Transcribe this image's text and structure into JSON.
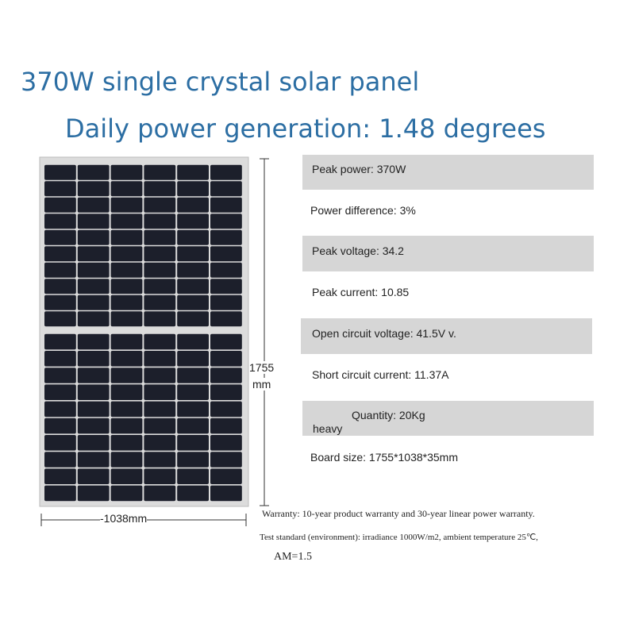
{
  "header": {
    "title": "370W single crystal solar panel",
    "subtitle": "Daily power generation: 1.48 degrees"
  },
  "dimensions": {
    "height_value": "1755",
    "height_unit": "mm",
    "width": "-1038mm"
  },
  "specs": [
    "Peak power: 370W",
    "Power difference: 3%",
    "Peak voltage: 34.2",
    "Peak current: 10.85",
    "Open circuit voltage: 41.5V v.",
    "Short circuit current: 11.37A",
    "Quantity: 20Kg",
    "Board size: 1755*1038*35mm"
  ],
  "heavy_label": "heavy",
  "notes": [
    "Warranty: 10-year product warranty and 30-year linear power warranty.",
    "Test standard (environment): irradiance 1000W/m2, ambient temperature 25℃,",
    "AM=1.5"
  ]
}
